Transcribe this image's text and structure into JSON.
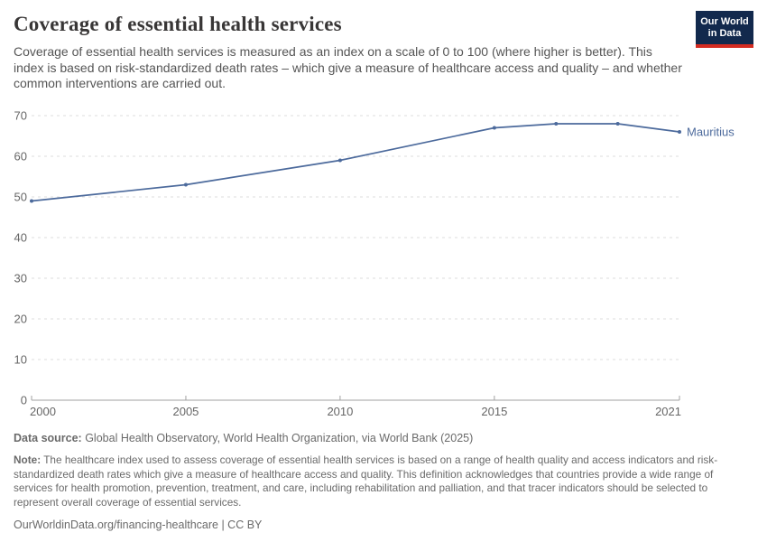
{
  "header": {
    "title": "Coverage of essential health services",
    "subtitle": "Coverage of essential health services is measured as an index on a scale of 0 to 100 (where higher is better). This index is based on risk-standardized death rates – which give a measure of healthcare access and quality – and whether common interventions are carried out."
  },
  "logo": {
    "line1": "Our World",
    "line2": "in Data",
    "bg_color": "#12294d",
    "accent_color": "#d42b21"
  },
  "chart_data": {
    "type": "line",
    "title": "Coverage of essential health services",
    "series": [
      {
        "name": "Mauritius",
        "color": "#4c6a9c",
        "x": [
          2000,
          2005,
          2010,
          2015,
          2017,
          2019,
          2021
        ],
        "values": [
          49,
          53,
          59,
          67,
          68,
          68,
          66
        ]
      }
    ],
    "xlabel": "",
    "ylabel": "",
    "xlim": [
      2000,
      2021
    ],
    "ylim": [
      0,
      70
    ],
    "x_ticks": [
      2000,
      2005,
      2010,
      2015,
      2021
    ],
    "y_ticks": [
      0,
      10,
      20,
      30,
      40,
      50,
      60,
      70
    ],
    "grid": "horizontal-dashed",
    "grid_color": "#dcdcdc",
    "axis_color": "#a1a1a1",
    "tick_label_color": "#666666",
    "legend_position": "end-of-line-label"
  },
  "footer": {
    "data_source_label": "Data source:",
    "data_source": " Global Health Observatory, World Health Organization, via World Bank (2025)",
    "note_label": "Note:",
    "note": " The healthcare index used to assess coverage of essential health services is based on a range of health quality and access indicators and risk-standardized death rates which give a measure of healthcare access and quality. This definition acknowledges that countries provide a wide range of services for health promotion, prevention, treatment, and care, including rehabilitation and palliation, and that tracer indicators should be selected to represent overall coverage of essential services.",
    "citation": "OurWorldinData.org/financing-healthcare | CC BY"
  }
}
